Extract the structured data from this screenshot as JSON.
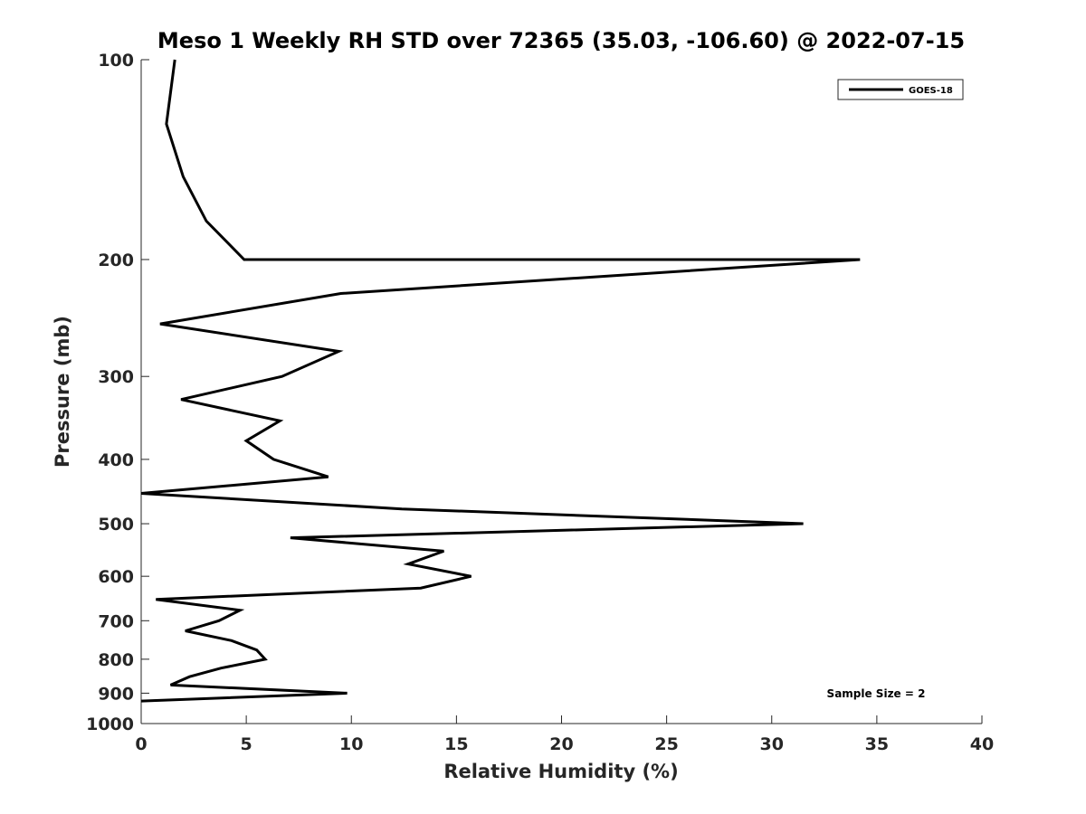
{
  "chart_data": {
    "type": "line",
    "title": "Meso 1 Weekly RH STD over 72365 (35.03, -106.60) @ 2022-07-15",
    "xlabel": "Relative Humidity (%)",
    "ylabel": "Pressure (mb)",
    "xlim": [
      0,
      40
    ],
    "ylim": [
      100,
      1000
    ],
    "y_scale": "log",
    "y_reversed": true,
    "grid": false,
    "legend_position": "top-right",
    "x_ticks": [
      "0",
      "5",
      "10",
      "15",
      "20",
      "25",
      "30",
      "35",
      "40"
    ],
    "y_ticks": [
      "100",
      "200",
      "300",
      "400",
      "500",
      "600",
      "700",
      "800",
      "900",
      "1000"
    ],
    "series": [
      {
        "name": "GOES-18",
        "color": "#000000",
        "points": [
          {
            "x": 1.6,
            "y": 100
          },
          {
            "x": 1.2,
            "y": 125
          },
          {
            "x": 2.0,
            "y": 150
          },
          {
            "x": 3.1,
            "y": 175
          },
          {
            "x": 4.9,
            "y": 200
          },
          {
            "x": 34.2,
            "y": 200
          },
          {
            "x": 9.5,
            "y": 225
          },
          {
            "x": 0.9,
            "y": 250
          },
          {
            "x": 9.4,
            "y": 275
          },
          {
            "x": 6.7,
            "y": 300
          },
          {
            "x": 1.9,
            "y": 325
          },
          {
            "x": 6.6,
            "y": 350
          },
          {
            "x": 5.0,
            "y": 375
          },
          {
            "x": 6.3,
            "y": 400
          },
          {
            "x": 8.9,
            "y": 425
          },
          {
            "x": 0.0,
            "y": 450
          },
          {
            "x": 12.4,
            "y": 475
          },
          {
            "x": 31.5,
            "y": 500
          },
          {
            "x": 7.1,
            "y": 525
          },
          {
            "x": 14.4,
            "y": 550
          },
          {
            "x": 12.7,
            "y": 575
          },
          {
            "x": 15.7,
            "y": 600
          },
          {
            "x": 13.3,
            "y": 625
          },
          {
            "x": 0.7,
            "y": 650
          },
          {
            "x": 4.7,
            "y": 675
          },
          {
            "x": 3.7,
            "y": 700
          },
          {
            "x": 2.1,
            "y": 725
          },
          {
            "x": 4.3,
            "y": 750
          },
          {
            "x": 5.5,
            "y": 775
          },
          {
            "x": 5.9,
            "y": 800
          },
          {
            "x": 3.8,
            "y": 825
          },
          {
            "x": 2.3,
            "y": 850
          },
          {
            "x": 1.4,
            "y": 875
          },
          {
            "x": 9.8,
            "y": 900
          },
          {
            "x": 0.0,
            "y": 925
          }
        ]
      }
    ],
    "annotations": [
      "Sample Size = 2"
    ]
  }
}
